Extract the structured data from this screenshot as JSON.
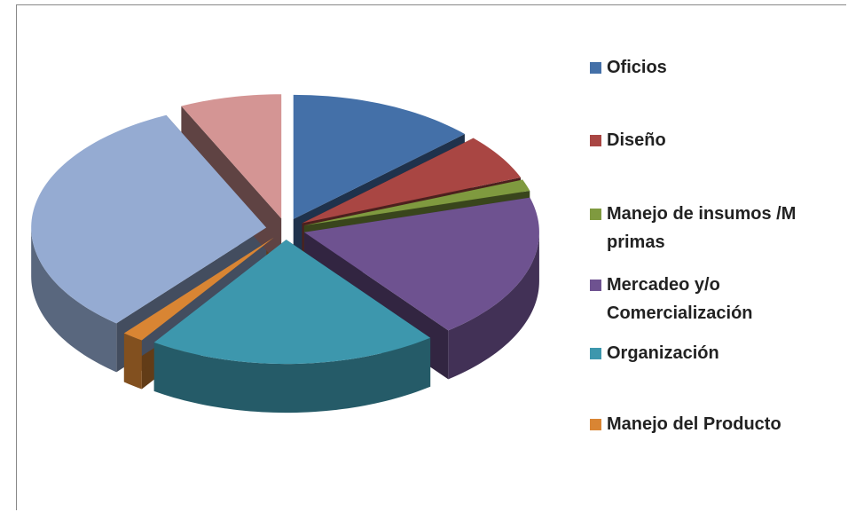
{
  "chart_data": {
    "type": "pie",
    "categories": [
      "Oficios",
      "Diseño",
      "Manejo de insumos /M primas",
      "Mercadeo y/o Comercialización",
      "Organización",
      "Manejo del Producto",
      null,
      null
    ],
    "values": [
      13,
      6,
      1.5,
      19,
      20,
      1.5,
      32,
      7
    ],
    "colors": [
      "#4470a8",
      "#a94643",
      "#7f9a3f",
      "#6e5290",
      "#3d97ad",
      "#d98533",
      "#95abd2",
      "#d49594"
    ],
    "legend": "right"
  }
}
